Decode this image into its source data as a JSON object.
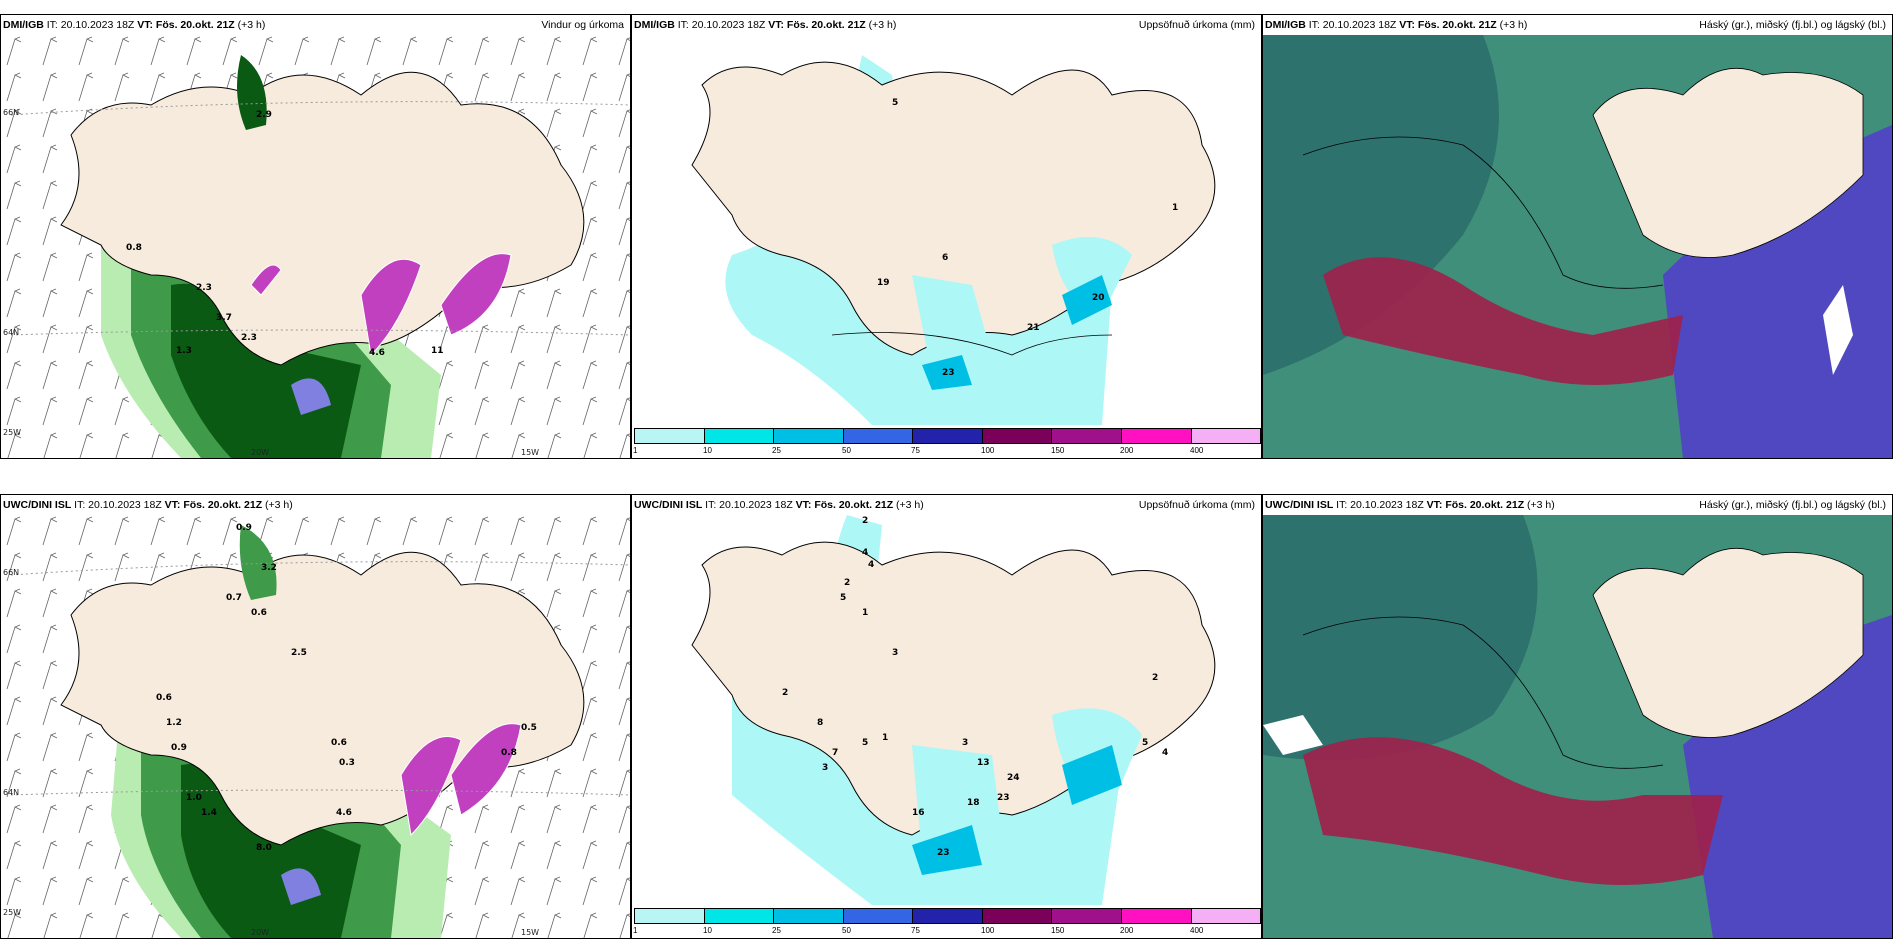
{
  "panels": [
    {
      "left_title": "DMI/IGB",
      "it": "IT: 20.10.2023 18Z",
      "vt": "VT: Fös. 20.okt. 21Z",
      "lead": "(+3 h)",
      "right_title": "Vindur og úrkoma"
    },
    {
      "left_title": "DMI/IGB",
      "it": "IT: 20.10.2023 18Z",
      "vt": "VT: Fös. 20.okt. 21Z",
      "lead": "(+3 h)",
      "right_title": "Uppsöfnuð úrkoma (mm)"
    },
    {
      "left_title": "DMI/IGB",
      "it": "IT: 20.10.2023 18Z",
      "vt": "VT: Fös. 20.okt. 21Z",
      "lead": "(+3 h)",
      "right_title": "Háský (gr.), miðský (fj.bl.) og lágský (bl.)"
    },
    {
      "left_title": "UWC/DINI ISL",
      "it": "IT: 20.10.2023 18Z",
      "vt": "VT: Fös. 20.okt. 21Z",
      "lead": "(+3 h)",
      "right_title": ""
    },
    {
      "left_title": "UWC/DINI ISL",
      "it": "IT: 20.10.2023 18Z",
      "vt": "VT: Fös. 20.okt. 21Z",
      "lead": "(+3 h)",
      "right_title": "Uppsöfnuð úrkoma (mm)"
    },
    {
      "left_title": "UWC/DINI ISL",
      "it": "IT: 20.10.2023 18Z",
      "vt": "VT: Fös. 20.okt. 21Z",
      "lead": "(+3 h)",
      "right_title": "Háský (gr.), miðský (fj.bl.) og lágský (bl.)"
    }
  ],
  "axes": {
    "lat1": "66N",
    "lat2": "64N",
    "lon1": "20W",
    "lon2": "15W",
    "lon3": "25W"
  },
  "colorbar": {
    "ticks": [
      "1",
      "10",
      "25",
      "50",
      "75",
      "100",
      "150",
      "200",
      "400"
    ],
    "colors": [
      "#b8f5f5",
      "#00e5e5",
      "#00bfe5",
      "#3366e5",
      "#2222aa",
      "#7a005a",
      "#a0108a",
      "#ff10c0",
      "#f5b0f5"
    ]
  },
  "wind_labels_top": [
    "2.9",
    "0.8",
    "2.3",
    "3.7",
    "2.3",
    "1.3",
    "4.6",
    "11"
  ],
  "wind_labels_bottom": [
    "0.9",
    "3.2",
    "0.7",
    "0.6",
    "2.5",
    "0.6",
    "1.2",
    "0.9",
    "1.0",
    "1.4",
    "8.0",
    "4.6",
    "0.6",
    "0.3",
    "0.5",
    "0.8"
  ],
  "precip_labels_top": [
    "5",
    "6",
    "19",
    "21",
    "20",
    "23",
    "1"
  ],
  "precip_labels_bottom": [
    "2",
    "4",
    "4",
    "2",
    "5",
    "1",
    "3",
    "2",
    "8",
    "7",
    "5",
    "3",
    "1",
    "3",
    "13",
    "24",
    "18",
    "23",
    "16",
    "23",
    "2",
    "4",
    "5"
  ],
  "colors": {
    "land": "#f7ebdd",
    "green_dark": "#0a5a14",
    "green_mid": "#3f9a4a",
    "green_light": "#b9ecb0",
    "purple": "#c040c0",
    "cyan": "#aef7f7",
    "cloud_green": "#3f8f7a",
    "cloud_blue": "#5048c0",
    "cloud_red": "#a0204a"
  }
}
